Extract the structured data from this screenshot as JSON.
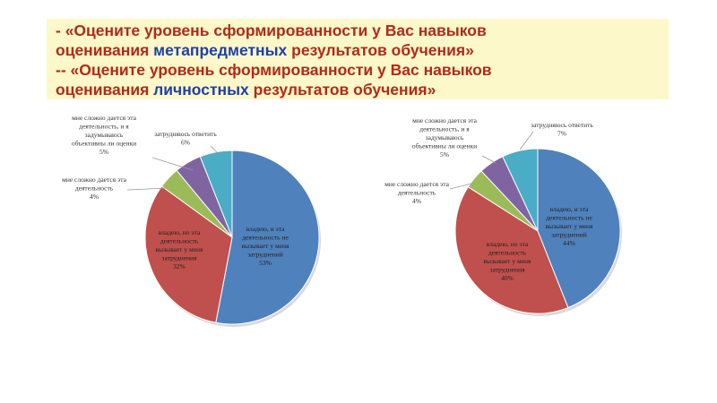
{
  "header": {
    "line1_prefix": " - «Оцените уровень сформированности у Вас навыков",
    "line2_start": "оценивания ",
    "line2_highlight": "метапредметных",
    "line2_end": " результатов обучения»",
    "line3_prefix": "-- «Оцените уровень сформированности у Вас навыков",
    "line4_start": "оценивания ",
    "line4_highlight": "личностных",
    "line4_end": " результатов обучения»"
  },
  "colors": {
    "title_text": "#b02a1a",
    "highlight_text": "#1f3fa8",
    "title_bg": "#fdf8c9",
    "slice_blue": "#4f81bd",
    "slice_red": "#c0504d",
    "slice_green": "#9bbb59",
    "slice_purple": "#8064a2",
    "slice_cyan": "#4bacc6"
  },
  "chart_data": [
    {
      "type": "pie",
      "slices": [
        {
          "label": [
            "владею, и эта",
            "деятельность не",
            "вызывает у меня",
            "затруднений"
          ],
          "value": 53,
          "value_label": "53%",
          "color": "#4f81bd"
        },
        {
          "label": [
            "владею, но эта",
            "деятельность",
            "вызывает у меня",
            "затруднения"
          ],
          "value": 32,
          "value_label": "32%",
          "color": "#c0504d"
        },
        {
          "label": [
            "мне сложно дается эта",
            "деятельность"
          ],
          "value": 4,
          "value_label": "4%",
          "color": "#9bbb59"
        },
        {
          "label": [
            "мне сложно дается эта",
            "деятельность, и я",
            "задумываюсь",
            "объективны ли оценки"
          ],
          "value": 5,
          "value_label": "5%",
          "color": "#8064a2"
        },
        {
          "label": [
            "затрудняюсь ответить"
          ],
          "value": 6,
          "value_label": "6%",
          "color": "#4bacc6"
        }
      ]
    },
    {
      "type": "pie",
      "slices": [
        {
          "label": [
            "владею, и эта",
            "деятельность не",
            "вызывает у меня",
            "затруднений"
          ],
          "value": 44,
          "value_label": "44%",
          "color": "#4f81bd"
        },
        {
          "label": [
            "владею, но эта",
            "деятельность",
            "вызывает у меня",
            "затруднения"
          ],
          "value": 40,
          "value_label": "40%",
          "color": "#c0504d"
        },
        {
          "label": [
            "мне сложно дается эта",
            "деятельность"
          ],
          "value": 4,
          "value_label": "4%",
          "color": "#9bbb59"
        },
        {
          "label": [
            "мне сложно дается эта",
            "деятельность, и я",
            "задумываюсь",
            "объективны ли оценки"
          ],
          "value": 5,
          "value_label": "5%",
          "color": "#8064a2"
        },
        {
          "label": [
            "затрудняюсь ответить"
          ],
          "value": 7,
          "value_label": "7%",
          "color": "#4bacc6"
        }
      ]
    }
  ]
}
